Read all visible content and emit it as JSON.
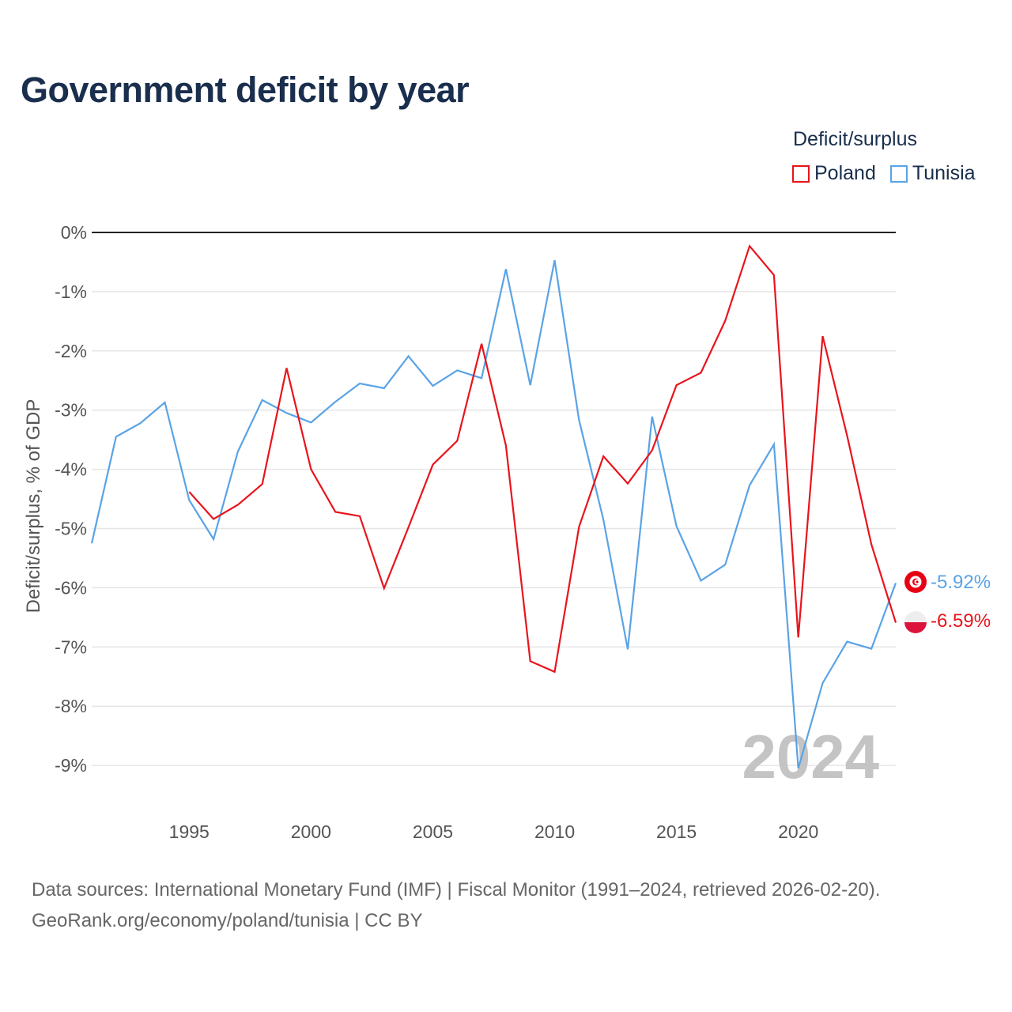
{
  "title": "Government deficit by year",
  "legend": {
    "title": "Deficit/surplus",
    "items": [
      {
        "label": "Poland",
        "color": "#e8141c"
      },
      {
        "label": "Tunisia",
        "color": "#5aa3e6"
      }
    ]
  },
  "footer": {
    "line1": "Data sources: International Monetary Fund (IMF) | Fiscal Monitor (1991–2024, retrieved 2026-02-20).",
    "line2": "GeoRank.org/economy/poland/tunisia | CC BY"
  },
  "chart_data": {
    "type": "line",
    "title": "Government deficit by year",
    "xlabel": "",
    "ylabel": "Deficit/surplus, % of GDP",
    "xlim": [
      1991,
      2024
    ],
    "ylim": [
      -10,
      0
    ],
    "x_ticks": [
      1995,
      2000,
      2005,
      2010,
      2015,
      2020
    ],
    "x_tick_labels": [
      "1995",
      "2000",
      "2005",
      "2010",
      "2015",
      "2020"
    ],
    "y_ticks": [
      0,
      -1,
      -2,
      -3,
      -4,
      -5,
      -6,
      -7,
      -8,
      -9
    ],
    "y_tick_labels": [
      "0%",
      "-1%",
      "-2%",
      "-3%",
      "-4%",
      "-5%",
      "-6%",
      "-7%",
      "-8%",
      "-9%"
    ],
    "watermark_year": "2024",
    "series": [
      {
        "name": "Poland",
        "color": "#e8141c",
        "end_label": "-6.59%",
        "x": [
          1995,
          1996,
          1997,
          1998,
          1999,
          2000,
          2001,
          2002,
          2003,
          2004,
          2005,
          2006,
          2007,
          2008,
          2009,
          2010,
          2011,
          2012,
          2013,
          2014,
          2015,
          2016,
          2017,
          2018,
          2019,
          2020,
          2021,
          2022,
          2023,
          2024
        ],
        "values": [
          -4.38,
          -4.84,
          -4.6,
          -4.25,
          -2.29,
          -4.0,
          -4.72,
          -4.79,
          -6.01,
          -4.98,
          -3.92,
          -3.52,
          -1.88,
          -3.6,
          -7.24,
          -7.42,
          -4.97,
          -3.78,
          -4.24,
          -3.68,
          -2.58,
          -2.37,
          -1.49,
          -0.23,
          -0.72,
          -6.84,
          -1.75,
          -3.43,
          -5.27,
          -6.59
        ]
      },
      {
        "name": "Tunisia",
        "color": "#5aa3e6",
        "end_label": "-5.92%",
        "x": [
          1991,
          1992,
          1993,
          1994,
          1995,
          1996,
          1997,
          1998,
          1999,
          2000,
          2001,
          2002,
          2003,
          2004,
          2005,
          2006,
          2007,
          2008,
          2009,
          2010,
          2011,
          2012,
          2013,
          2014,
          2015,
          2016,
          2017,
          2018,
          2019,
          2020,
          2021,
          2022,
          2023,
          2024
        ],
        "values": [
          -5.25,
          -3.45,
          -3.22,
          -2.87,
          -4.52,
          -5.18,
          -3.7,
          -2.83,
          -3.05,
          -3.21,
          -2.86,
          -2.55,
          -2.63,
          -2.09,
          -2.59,
          -2.33,
          -2.46,
          -0.62,
          -2.58,
          -0.47,
          -3.17,
          -4.85,
          -7.04,
          -3.11,
          -4.96,
          -5.88,
          -5.61,
          -4.27,
          -3.58,
          -9.05,
          -7.61,
          -6.91,
          -7.03,
          -5.92
        ]
      }
    ]
  }
}
